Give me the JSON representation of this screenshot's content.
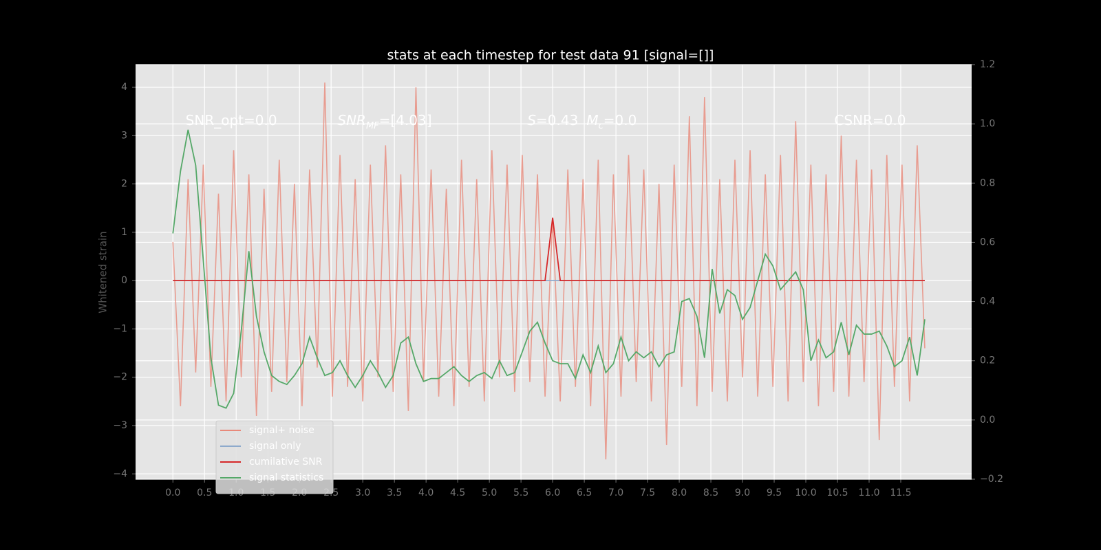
{
  "chart_data": {
    "type": "line",
    "title": "stats at each timestep for test data 91 [signal=[]]",
    "ylabel": "Whitened strain",
    "xlim": [
      -0.59,
      12.62
    ],
    "ylim": [
      -4.11,
      4.47
    ],
    "y2lim": [
      -0.2,
      1.2
    ],
    "grid": true,
    "legend": "lower left",
    "xticks": [
      {
        "value": 0,
        "label": "0.0"
      },
      {
        "value": 0.5,
        "label": "0.5"
      },
      {
        "value": 1,
        "label": "1.0"
      },
      {
        "value": 1.5,
        "label": "1.5"
      },
      {
        "value": 2,
        "label": "2.0"
      },
      {
        "value": 2.5,
        "label": "2.5"
      },
      {
        "value": 3,
        "label": "3.0"
      },
      {
        "value": 3.5,
        "label": "3.5"
      },
      {
        "value": 4,
        "label": "4.0"
      },
      {
        "value": 4.5,
        "label": "4.5"
      },
      {
        "value": 5,
        "label": "5.0"
      },
      {
        "value": 5.5,
        "label": "5.5"
      },
      {
        "value": 6,
        "label": "6.0"
      },
      {
        "value": 6.5,
        "label": "6.5"
      },
      {
        "value": 7,
        "label": "7.0"
      },
      {
        "value": 7.5,
        "label": "7.5"
      },
      {
        "value": 8,
        "label": "8.0"
      },
      {
        "value": 8.5,
        "label": "8.5"
      },
      {
        "value": 9,
        "label": "9.0"
      },
      {
        "value": 9.5,
        "label": "9.5"
      },
      {
        "value": 10,
        "label": "10.0"
      },
      {
        "value": 10.5,
        "label": "10.5"
      },
      {
        "value": 11,
        "label": "11.0"
      },
      {
        "value": 11.5,
        "label": "11.5"
      }
    ],
    "yticks": [
      {
        "value": -4,
        "label": "−4"
      },
      {
        "value": -3,
        "label": "−3"
      },
      {
        "value": -2,
        "label": "−2"
      },
      {
        "value": -1,
        "label": "−1"
      },
      0,
      1,
      2,
      3,
      4
    ],
    "y2ticks": [
      {
        "value": -0.2,
        "label": "−0.2"
      },
      {
        "value": 0,
        "label": "0.0"
      },
      {
        "value": 0.2,
        "label": "0.2"
      },
      {
        "value": 0.4,
        "label": "0.4"
      },
      {
        "value": 0.6,
        "label": "0.6"
      },
      {
        "value": 0.8,
        "label": "0.8"
      },
      {
        "value": 1,
        "label": "1.0"
      },
      {
        "value": 1.2,
        "label": "1.2"
      }
    ],
    "annotations": [
      {
        "x": 0.2,
        "y": 3.3,
        "parts": [
          {
            "text": "SNR_opt=0.0",
            "style": "normal"
          }
        ]
      },
      {
        "x": 2.6,
        "y": 3.3,
        "parts": [
          {
            "text": "SNR",
            "style": "italic"
          },
          {
            "text": "MF",
            "style": "sub"
          },
          {
            "text": "=[4.03]",
            "style": "normal"
          }
        ]
      },
      {
        "x": 5.6,
        "y": 3.3,
        "parts": [
          {
            "text": "S",
            "style": "italic"
          },
          {
            "text": "=0.43",
            "style": "normal"
          },
          {
            "text": "M",
            "style": "italic"
          },
          {
            "text": "c",
            "style": "sub"
          },
          {
            "text": "=0.0",
            "style": "normal"
          }
        ]
      },
      {
        "x": 10.45,
        "y": 3.3,
        "parts": [
          {
            "text": "CSNR=0.0",
            "style": "normal"
          }
        ]
      }
    ],
    "x": [
      0,
      0.12,
      0.24,
      0.36,
      0.48,
      0.6,
      0.72,
      0.84,
      0.96,
      1.08,
      1.2,
      1.32,
      1.44,
      1.56,
      1.68,
      1.8,
      1.92,
      2.04,
      2.16,
      2.28,
      2.4,
      2.52,
      2.64,
      2.76,
      2.88,
      3,
      3.12,
      3.24,
      3.36,
      3.48,
      3.6,
      3.72,
      3.84,
      3.96,
      4.08,
      4.2,
      4.32,
      4.44,
      4.56,
      4.68,
      4.8,
      4.92,
      5.04,
      5.16,
      5.28,
      5.4,
      5.52,
      5.64,
      5.76,
      5.88,
      6,
      6.12,
      6.24,
      6.36,
      6.48,
      6.6,
      6.72,
      6.84,
      6.96,
      7.08,
      7.2,
      7.32,
      7.44,
      7.56,
      7.68,
      7.8,
      7.92,
      8.04,
      8.16,
      8.28,
      8.4,
      8.52,
      8.64,
      8.76,
      8.88,
      9,
      9.12,
      9.24,
      9.36,
      9.48,
      9.6,
      9.72,
      9.84,
      9.96,
      10.08,
      10.2,
      10.32,
      10.44,
      10.56,
      10.68,
      10.8,
      10.92,
      11.04,
      11.16,
      11.28,
      11.4,
      11.52,
      11.64,
      11.76,
      11.88
    ],
    "series": [
      {
        "name": "signal+ noise",
        "color": "#e8897a",
        "values": [
          0.8,
          -2.6,
          2.1,
          -1.9,
          2.4,
          -2.2,
          1.8,
          -2.5,
          2.7,
          -2.0,
          2.2,
          -2.8,
          1.9,
          -2.3,
          2.5,
          -2.1,
          2.0,
          -2.6,
          2.3,
          -1.8,
          4.1,
          -2.4,
          2.6,
          -2.2,
          2.1,
          -2.5,
          2.4,
          -2.0,
          2.8,
          -2.3,
          2.2,
          -2.7,
          4.0,
          -2.1,
          2.3,
          -2.4,
          1.9,
          -2.6,
          2.5,
          -2.2,
          2.1,
          -2.5,
          2.7,
          -2.0,
          2.4,
          -2.3,
          2.6,
          -2.1,
          2.2,
          -2.4,
          1.3,
          -2.5,
          2.3,
          -2.2,
          2.1,
          -2.6,
          2.5,
          -3.7,
          2.2,
          -2.4,
          2.6,
          -2.1,
          2.3,
          -2.5,
          2.0,
          -3.4,
          2.4,
          -2.2,
          3.4,
          -2.6,
          3.8,
          -2.3,
          2.1,
          -2.5,
          2.5,
          -2.0,
          2.7,
          -2.4,
          2.2,
          -2.2,
          2.6,
          -2.5,
          3.3,
          -2.1,
          2.4,
          -2.6,
          2.2,
          -2.3,
          3.0,
          -2.4,
          2.5,
          -2.1,
          2.3,
          -3.3,
          2.6,
          -2.2,
          2.4,
          -2.5,
          2.8,
          -1.4
        ]
      },
      {
        "name": "signal only",
        "color": "#8eaacc",
        "values": [
          0,
          0,
          0,
          0,
          0,
          0,
          0,
          0,
          0,
          0,
          0,
          0,
          0,
          0,
          0,
          0,
          0,
          0,
          0,
          0,
          0,
          0,
          0,
          0,
          0,
          0,
          0,
          0,
          0,
          0,
          0,
          0,
          0,
          0,
          0,
          0,
          0,
          0,
          0,
          0,
          0,
          0,
          0,
          0,
          0,
          0,
          0,
          0,
          0,
          0,
          0,
          0,
          0,
          0,
          0,
          0,
          0,
          0,
          0,
          0,
          0,
          0,
          0,
          0,
          0,
          0,
          0,
          0,
          0,
          0,
          0,
          0,
          0,
          0,
          0,
          0,
          0,
          0,
          0,
          0,
          0,
          0,
          0,
          0,
          0,
          0,
          0,
          0,
          0,
          0,
          0,
          0,
          0,
          0,
          0,
          0,
          0,
          0,
          0,
          0
        ]
      },
      {
        "name": "cumilative SNR",
        "color": "#d62728",
        "values": [
          0,
          0,
          0,
          0,
          0,
          0,
          0,
          0,
          0,
          0,
          0,
          0,
          0,
          0,
          0,
          0,
          0,
          0,
          0,
          0,
          0,
          0,
          0,
          0,
          0,
          0,
          0,
          0,
          0,
          0,
          0,
          0,
          0,
          0,
          0,
          0,
          0,
          0,
          0,
          0,
          0,
          0,
          0,
          0,
          0,
          0,
          0,
          0,
          0,
          0,
          1.3,
          0,
          0,
          0,
          0,
          0,
          0,
          0,
          0,
          0,
          0,
          0,
          0,
          0,
          0,
          0,
          0,
          0,
          0,
          0,
          0,
          0,
          0,
          0,
          0,
          0,
          0,
          0,
          0,
          0,
          0,
          0,
          0,
          0,
          0,
          0,
          0,
          0,
          0,
          0,
          0,
          0,
          0,
          0,
          0,
          0,
          0,
          0,
          0,
          0
        ]
      },
      {
        "name": "signal statistics",
        "color": "#55a868",
        "axis": "y2",
        "values": [
          0.63,
          0.84,
          0.98,
          0.86,
          0.54,
          0.21,
          0.05,
          0.04,
          0.09,
          0.3,
          0.57,
          0.35,
          0.23,
          0.15,
          0.13,
          0.12,
          0.15,
          0.19,
          0.28,
          0.21,
          0.15,
          0.16,
          0.2,
          0.15,
          0.11,
          0.15,
          0.2,
          0.16,
          0.11,
          0.15,
          0.26,
          0.28,
          0.19,
          0.13,
          0.14,
          0.14,
          0.16,
          0.18,
          0.15,
          0.13,
          0.15,
          0.16,
          0.14,
          0.2,
          0.15,
          0.16,
          0.23,
          0.3,
          0.33,
          0.26,
          0.2,
          0.19,
          0.19,
          0.14,
          0.22,
          0.16,
          0.25,
          0.16,
          0.19,
          0.28,
          0.2,
          0.23,
          0.21,
          0.23,
          0.18,
          0.22,
          0.23,
          0.4,
          0.41,
          0.35,
          0.21,
          0.51,
          0.36,
          0.44,
          0.42,
          0.34,
          0.38,
          0.47,
          0.56,
          0.52,
          0.44,
          0.47,
          0.5,
          0.44,
          0.2,
          0.27,
          0.21,
          0.23,
          0.33,
          0.22,
          0.32,
          0.29,
          0.29,
          0.3,
          0.25,
          0.18,
          0.2,
          0.28,
          0.15,
          0.34
        ]
      }
    ]
  }
}
